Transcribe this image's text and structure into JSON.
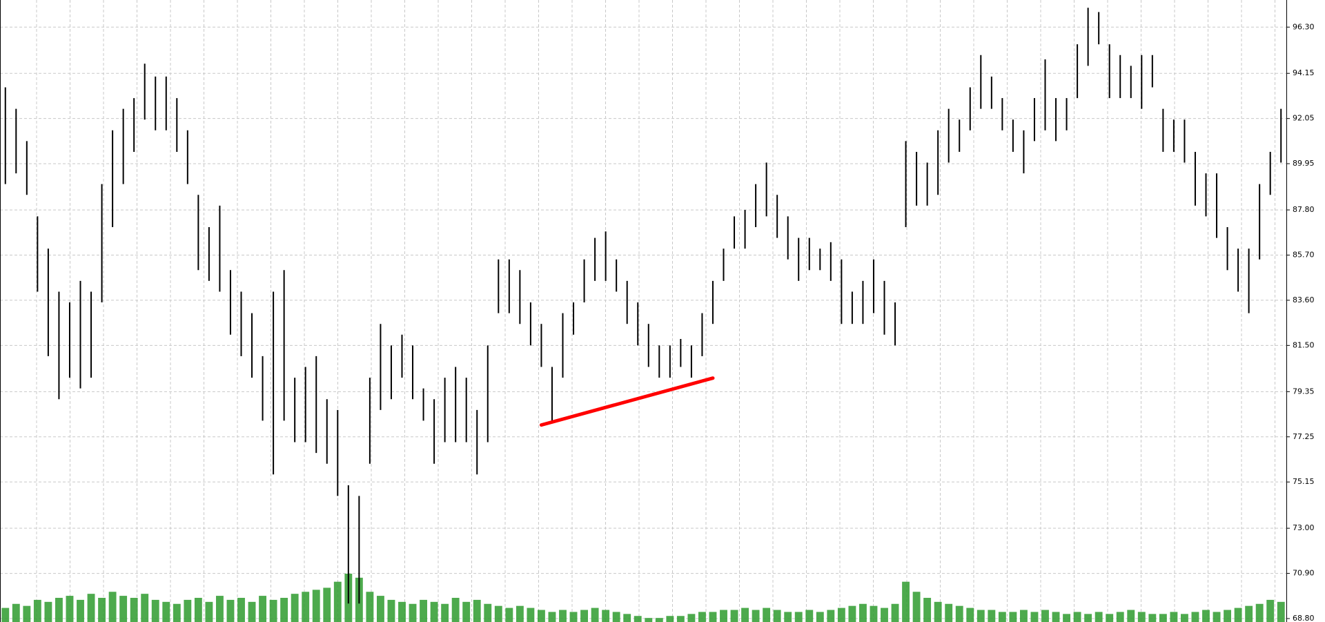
{
  "chart_data": {
    "type": "range-bar",
    "color": "#000000",
    "volume_color": "#2e9b2e",
    "ylim": [
      68.64,
      97.56
    ],
    "yticks": [
      {
        "value": 96.3,
        "label": "96.30"
      },
      {
        "value": 94.15,
        "label": "94.15"
      },
      {
        "value": 92.05,
        "label": "92.05"
      },
      {
        "value": 89.95,
        "label": "89.95"
      },
      {
        "value": 87.8,
        "label": "87.80"
      },
      {
        "value": 85.7,
        "label": "85.70"
      },
      {
        "value": 83.6,
        "label": "83.60"
      },
      {
        "value": 81.5,
        "label": "81.50"
      },
      {
        "value": 79.35,
        "label": "79.35"
      },
      {
        "value": 77.25,
        "label": "77.25"
      },
      {
        "value": 75.15,
        "label": "75.15"
      },
      {
        "value": 73,
        "label": "73.00"
      },
      {
        "value": 70.9,
        "label": "70.90"
      },
      {
        "value": 68.8,
        "label": "68.80"
      }
    ],
    "grid": true,
    "high": [
      93.5,
      92.5,
      91,
      87.5,
      86,
      84,
      83.5,
      84.5,
      84,
      89,
      91.5,
      92.5,
      93,
      94.6,
      94,
      94,
      93,
      91.5,
      88.5,
      87,
      88,
      85,
      84,
      83,
      81,
      84,
      85,
      80,
      80.5,
      81,
      79,
      78.5,
      75,
      74.5,
      80,
      82.5,
      81.5,
      82,
      81.5,
      79.5,
      79,
      80,
      80.5,
      80,
      78.5,
      81.5,
      85.5,
      85.5,
      85,
      83.5,
      82.5,
      80.5,
      83,
      83.5,
      85.5,
      86.5,
      86.8,
      85.5,
      84.5,
      83.5,
      82.5,
      81.5,
      81.5,
      81.8,
      81.5,
      83,
      84.5,
      86,
      87.5,
      87.8,
      89,
      90,
      88.5,
      87.5,
      86.5,
      86.5,
      86,
      86.3,
      85.5,
      84,
      84.5,
      85.5,
      84.5,
      83.5,
      91,
      90.5,
      90,
      91.5,
      92.5,
      92,
      93.5,
      95,
      94,
      93,
      92,
      91.5,
      93,
      94.8,
      93,
      93,
      95.5,
      97.2,
      97,
      95.5,
      95,
      94.5,
      95,
      95,
      92.5,
      92,
      92,
      90.5,
      89.5,
      89.5,
      87,
      86,
      86,
      89,
      90.5,
      92.5
    ],
    "low": [
      89,
      89.5,
      88.5,
      84,
      81,
      79,
      80,
      79.5,
      80,
      83.5,
      87,
      89,
      90.5,
      92,
      91.5,
      91.5,
      90.5,
      89,
      85,
      84.5,
      84,
      82,
      81,
      80,
      78,
      75.5,
      78,
      77,
      77,
      76.5,
      76,
      74.5,
      69.5,
      69.5,
      76,
      78.5,
      79,
      80,
      79,
      78,
      76,
      77,
      77,
      77,
      75.5,
      77,
      83,
      83,
      82.5,
      81.5,
      80.5,
      78,
      80,
      82,
      83.5,
      84.5,
      84.5,
      84,
      82.5,
      81.5,
      80.5,
      80,
      80,
      80.5,
      80,
      81,
      82.5,
      84.5,
      86,
      86,
      87,
      87.5,
      86.5,
      85.5,
      84.5,
      85,
      85,
      84.5,
      82.5,
      82.5,
      82.5,
      83,
      82,
      81.5,
      87,
      88,
      88,
      88.5,
      90,
      90.5,
      91.5,
      92.5,
      92.5,
      91.5,
      90.5,
      89.5,
      91,
      91.5,
      91,
      91.5,
      93,
      94.5,
      95.5,
      93,
      93,
      93,
      92.5,
      93.5,
      90.5,
      90.5,
      90,
      88,
      87.5,
      86.5,
      85,
      84,
      83,
      85.5,
      88.5,
      90
    ],
    "volume": [
      14,
      18,
      16,
      22,
      20,
      24,
      26,
      22,
      28,
      24,
      30,
      26,
      24,
      28,
      22,
      20,
      18,
      22,
      24,
      20,
      26,
      22,
      24,
      20,
      26,
      22,
      24,
      28,
      30,
      32,
      34,
      40,
      48,
      44,
      30,
      26,
      22,
      20,
      18,
      22,
      20,
      18,
      24,
      20,
      22,
      18,
      16,
      14,
      16,
      14,
      12,
      10,
      12,
      10,
      12,
      14,
      12,
      10,
      8,
      6,
      4,
      4,
      6,
      6,
      8,
      10,
      10,
      12,
      12,
      14,
      12,
      14,
      12,
      10,
      10,
      12,
      10,
      12,
      14,
      16,
      18,
      16,
      14,
      18,
      40,
      30,
      24,
      20,
      18,
      16,
      14,
      12,
      12,
      10,
      10,
      12,
      10,
      12,
      10,
      8,
      10,
      8,
      10,
      8,
      10,
      12,
      10,
      8,
      8,
      10,
      8,
      10,
      12,
      10,
      12,
      14,
      16,
      18,
      22,
      20
    ],
    "trendline": {
      "x": [
        50,
        66
      ],
      "values": [
        77.8,
        79.98
      ],
      "color": "#ff0000"
    }
  }
}
